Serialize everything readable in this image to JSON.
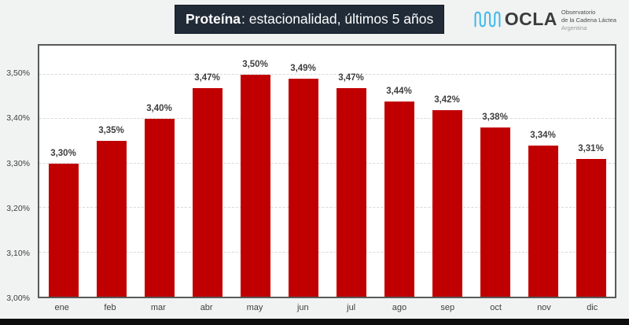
{
  "colors": {
    "background": "#F1F2F2",
    "bar": "#C00000",
    "title_bg": "#212B38",
    "logo_blue": "#3EB9EA",
    "grid": "#D9D9D9",
    "plot_border": "#595959",
    "label_text": "#3F3F3F",
    "footer_bar": "#0D0D0D"
  },
  "header": {
    "title_bold": "Proteína",
    "title_rest": ": estacionalidad, últimos 5 años"
  },
  "logo": {
    "acronym": "OCLA",
    "line1": "Observatorio",
    "line2": "de la Cadena Láctea",
    "line3": "Argentina"
  },
  "chart_data": {
    "type": "bar",
    "title": "Proteína: estacionalidad, últimos 5 años",
    "categories": [
      "ene",
      "feb",
      "mar",
      "abr",
      "may",
      "jun",
      "jul",
      "ago",
      "sep",
      "oct",
      "nov",
      "dic"
    ],
    "values": [
      3.3,
      3.35,
      3.4,
      3.47,
      3.5,
      3.49,
      3.47,
      3.44,
      3.42,
      3.38,
      3.34,
      3.31
    ],
    "data_labels": [
      "3,30%",
      "3,35%",
      "3,40%",
      "3,47%",
      "3,50%",
      "3,49%",
      "3,47%",
      "3,44%",
      "3,42%",
      "3,38%",
      "3,34%",
      "3,31%"
    ],
    "xlabel": "",
    "ylabel": "",
    "ylim": [
      3.0,
      3.565
    ],
    "yticks": [
      3.0,
      3.1,
      3.2,
      3.3,
      3.4,
      3.5
    ],
    "ytick_labels": [
      "3,00%",
      "3,10%",
      "3,20%",
      "3,30%",
      "3,40%",
      "3,50%"
    ],
    "grid": "horizontal-dashed",
    "legend": "none",
    "bar_color": "#C00000"
  }
}
